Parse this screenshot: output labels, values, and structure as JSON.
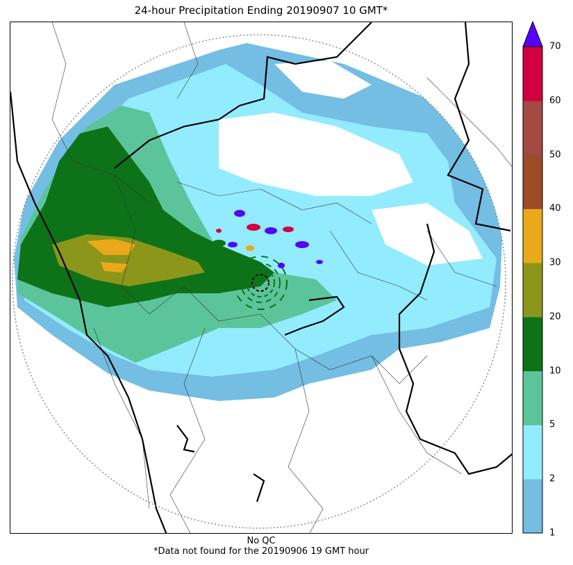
{
  "title": "24-hour Precipitation Ending 20190907 10 GMT*",
  "footer": {
    "qc_note": "No QC",
    "missing_note": "*Data not found for the 20190906 19 GMT hour"
  },
  "colorbar": {
    "ticks": [
      "1",
      "2",
      "5",
      "10",
      "20",
      "30",
      "40",
      "50",
      "60",
      "70"
    ],
    "colors": [
      "#74bde3",
      "#92ecfd",
      "#5cc49a",
      "#0e7219",
      "#8b961a",
      "#e9a91a",
      "#9c4c26",
      "#a34a42",
      "#d2003f"
    ],
    "extend_color": "#5500ff"
  },
  "map": {
    "boundary_color": "#000000",
    "range_ring_color": "#888888"
  }
}
